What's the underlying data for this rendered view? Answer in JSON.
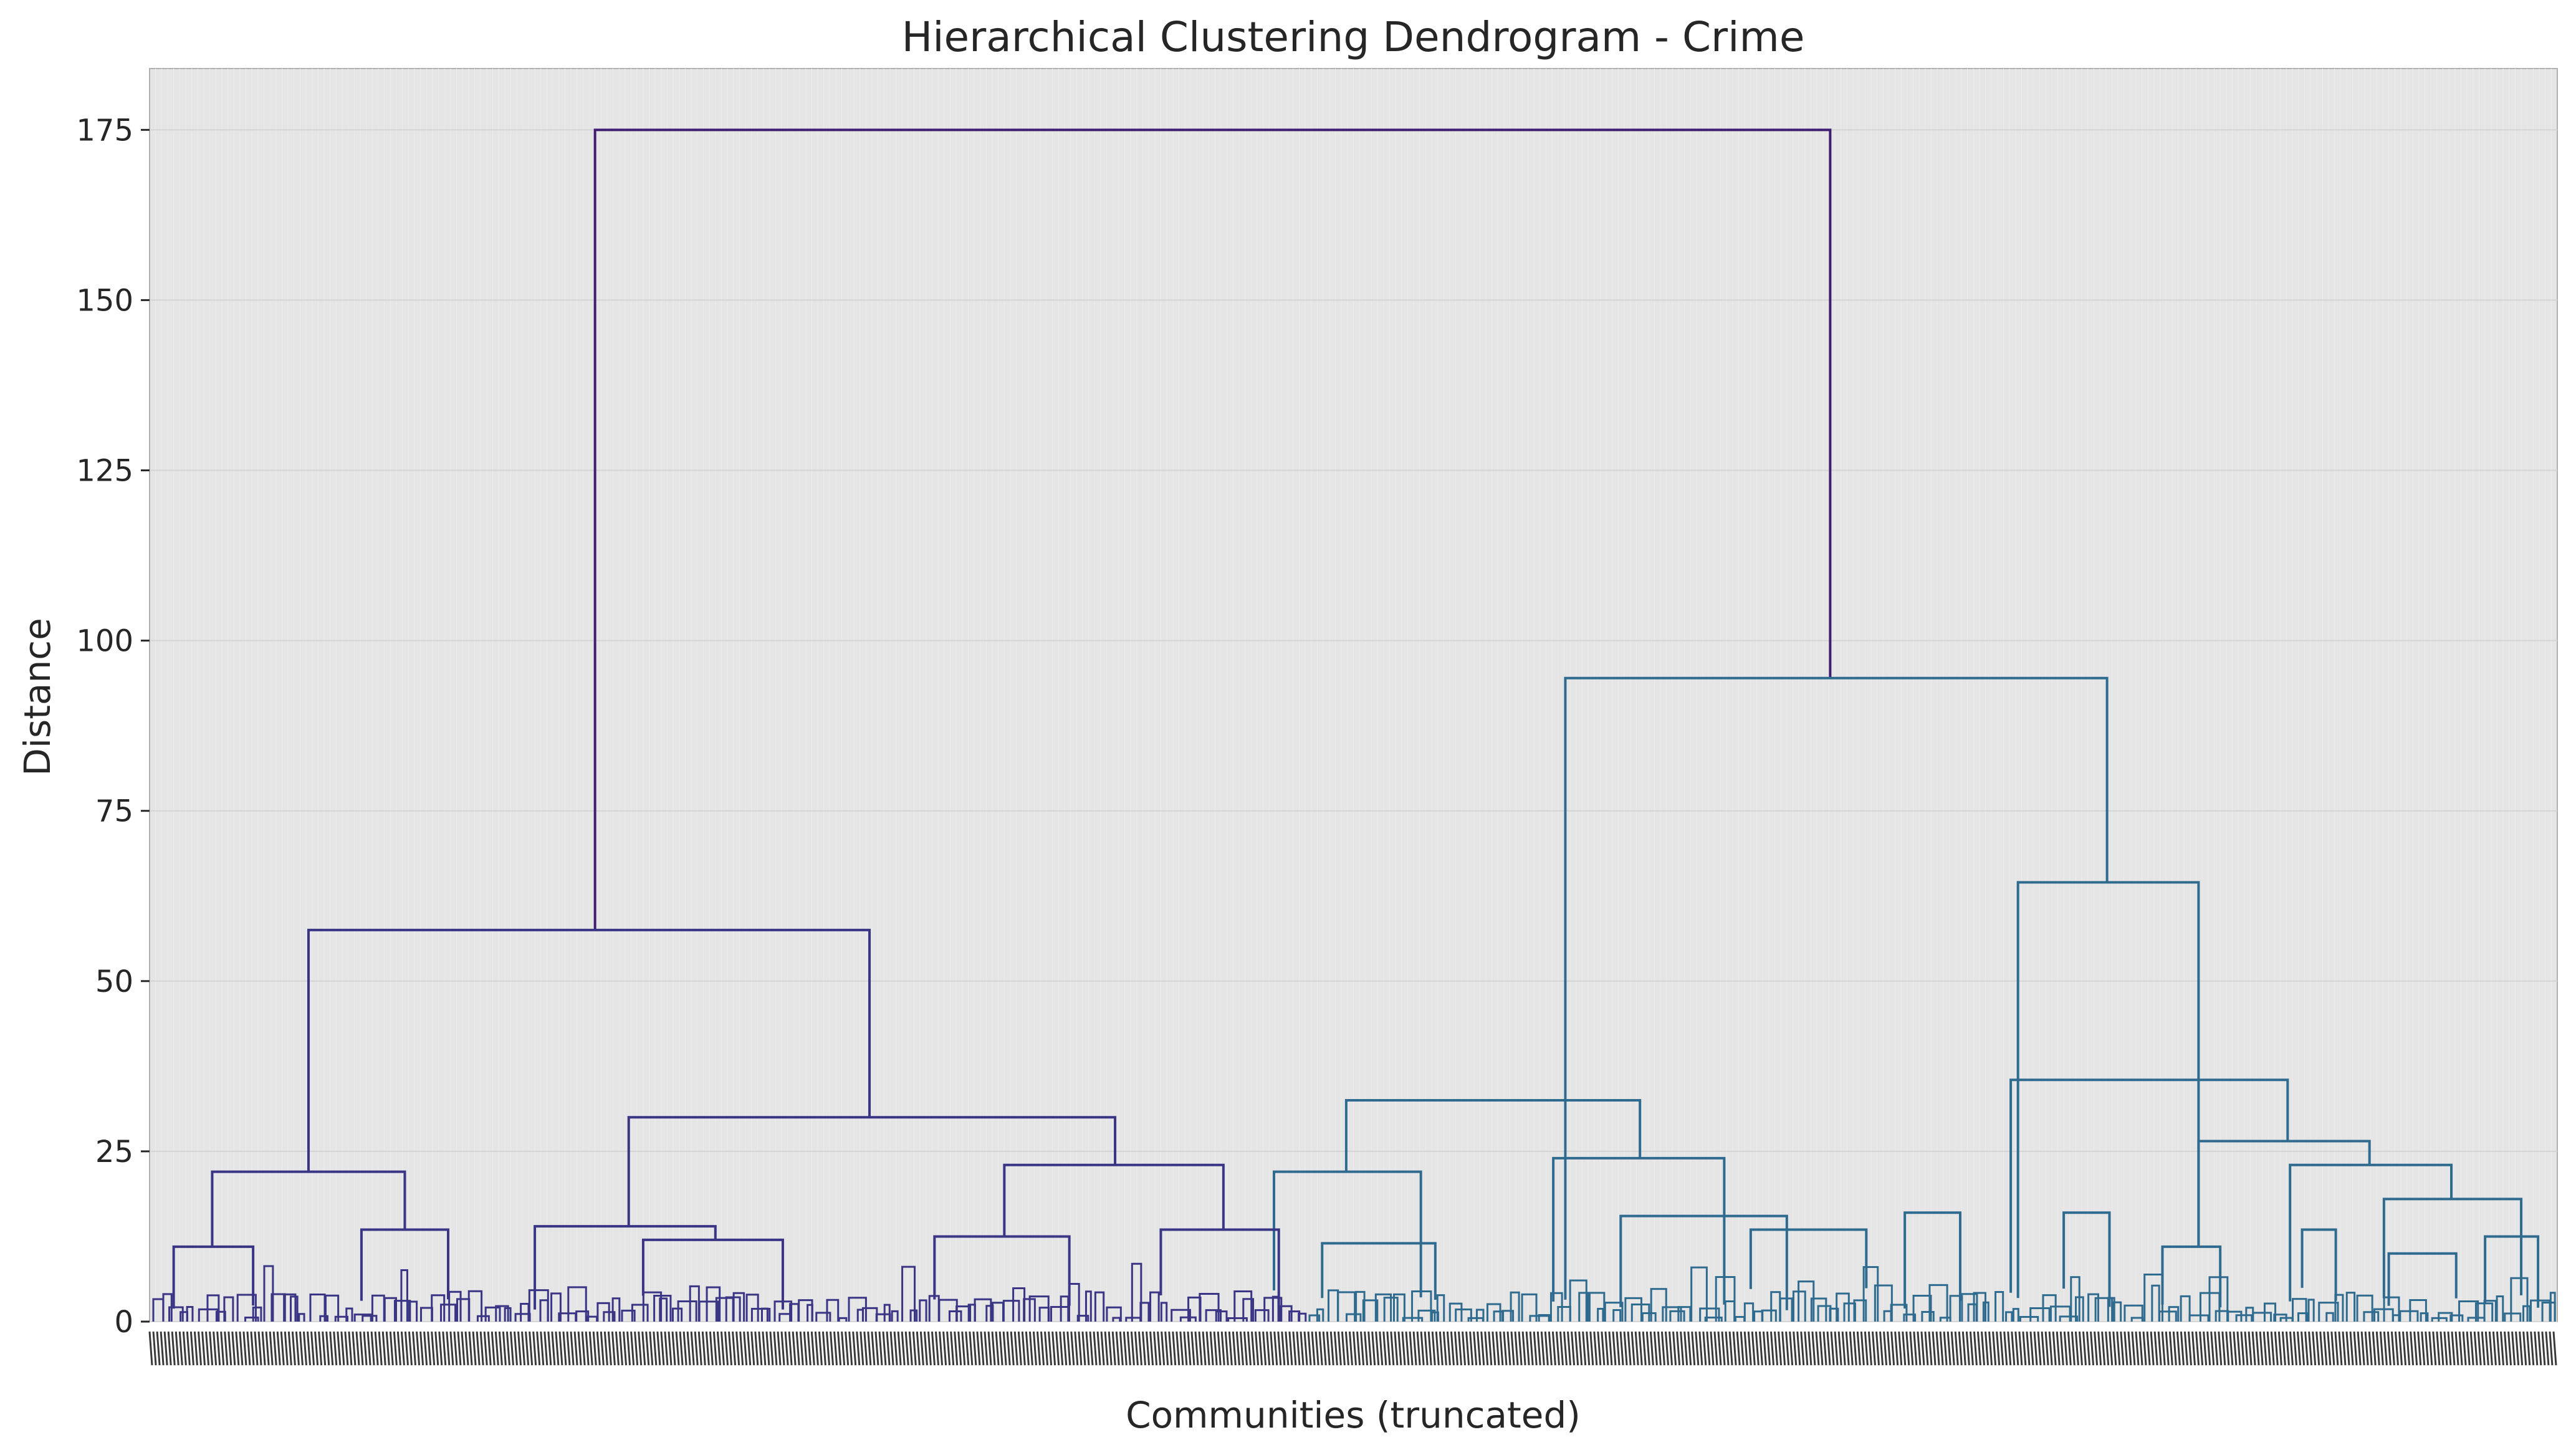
{
  "chart_data": {
    "type": "dendrogram",
    "title": "Hierarchical Clustering Dendrogram - Crime",
    "xlabel": "Communities (truncated)",
    "ylabel": "Distance",
    "ylim": [
      0,
      184
    ],
    "yticks": [
      0,
      25,
      50,
      75,
      100,
      125,
      150,
      175
    ],
    "grid": true,
    "x_tick_labels_note": "dense unreadable leaf labels",
    "merges": [
      {
        "x1": 0.185,
        "x2": 0.698,
        "height": 175.0,
        "branch": "root"
      },
      {
        "x1": 0.066,
        "x2": 0.299,
        "height": 57.5,
        "branch": "left"
      },
      {
        "x1": 0.588,
        "x2": 0.813,
        "height": 94.5,
        "branch": "right"
      },
      {
        "x1": 0.026,
        "x2": 0.106,
        "height": 22.0,
        "branch": "left"
      },
      {
        "x1": 0.199,
        "x2": 0.401,
        "height": 30.0,
        "branch": "left"
      },
      {
        "x1": 0.497,
        "x2": 0.619,
        "height": 32.5,
        "branch": "right"
      },
      {
        "x1": 0.776,
        "x2": 0.851,
        "height": 64.5,
        "branch": "right"
      },
      {
        "x1": 0.01,
        "x2": 0.043,
        "height": 11.0,
        "branch": "left"
      },
      {
        "x1": 0.088,
        "x2": 0.124,
        "height": 13.5,
        "branch": "left"
      },
      {
        "x1": 0.16,
        "x2": 0.235,
        "height": 14.0,
        "branch": "left"
      },
      {
        "x1": 0.355,
        "x2": 0.446,
        "height": 23.0,
        "branch": "left"
      },
      {
        "x1": 0.467,
        "x2": 0.528,
        "height": 22.0,
        "branch": "right"
      },
      {
        "x1": 0.583,
        "x2": 0.654,
        "height": 24.0,
        "branch": "right"
      },
      {
        "x1": 0.773,
        "x2": 0.888,
        "height": 35.5,
        "branch": "right"
      },
      {
        "x1": 0.205,
        "x2": 0.263,
        "height": 12.0,
        "branch": "left"
      },
      {
        "x1": 0.326,
        "x2": 0.382,
        "height": 12.5,
        "branch": "left"
      },
      {
        "x1": 0.42,
        "x2": 0.469,
        "height": 13.5,
        "branch": "left"
      },
      {
        "x1": 0.487,
        "x2": 0.534,
        "height": 11.5,
        "branch": "right"
      },
      {
        "x1": 0.611,
        "x2": 0.68,
        "height": 15.5,
        "branch": "right"
      },
      {
        "x1": 0.665,
        "x2": 0.713,
        "height": 13.5,
        "branch": "right"
      },
      {
        "x1": 0.729,
        "x2": 0.752,
        "height": 16.0,
        "branch": "right"
      },
      {
        "x1": 0.795,
        "x2": 0.814,
        "height": 16.0,
        "branch": "right"
      },
      {
        "x1": 0.851,
        "x2": 0.922,
        "height": 26.5,
        "branch": "right"
      },
      {
        "x1": 0.889,
        "x2": 0.956,
        "height": 23.0,
        "branch": "right"
      },
      {
        "x1": 0.928,
        "x2": 0.985,
        "height": 18.0,
        "branch": "right"
      },
      {
        "x1": 0.836,
        "x2": 0.86,
        "height": 11.0,
        "branch": "right"
      },
      {
        "x1": 0.894,
        "x2": 0.908,
        "height": 13.5,
        "branch": "right"
      },
      {
        "x1": 0.93,
        "x2": 0.958,
        "height": 10.0,
        "branch": "right"
      },
      {
        "x1": 0.97,
        "x2": 0.992,
        "height": 12.5,
        "branch": "right"
      }
    ],
    "colors": {
      "left_cluster": "#3a3584",
      "right_cluster": "#2f6a8f",
      "root": "#3f1f72",
      "plot_background": "#e5e5e5",
      "gridline": "#ececec"
    }
  }
}
